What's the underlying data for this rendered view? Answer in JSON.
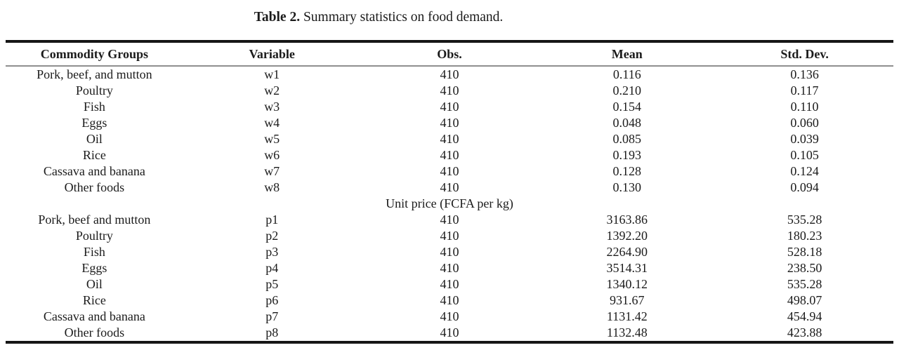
{
  "caption": {
    "label": "Table 2.",
    "text": "Summary statistics on food demand."
  },
  "table": {
    "headers": [
      "Commodity Groups",
      "Variable",
      "Obs.",
      "Mean",
      "Std. Dev."
    ],
    "budget_share_rows": [
      {
        "commodity": "Pork, beef, and mutton",
        "variable": "w1",
        "obs": "410",
        "mean": "0.116",
        "std_dev": "0.136"
      },
      {
        "commodity": "Poultry",
        "variable": "w2",
        "obs": "410",
        "mean": "0.210",
        "std_dev": "0.117"
      },
      {
        "commodity": "Fish",
        "variable": "w3",
        "obs": "410",
        "mean": "0.154",
        "std_dev": "0.110"
      },
      {
        "commodity": "Eggs",
        "variable": "w4",
        "obs": "410",
        "mean": "0.048",
        "std_dev": "0.060"
      },
      {
        "commodity": "Oil",
        "variable": "w5",
        "obs": "410",
        "mean": "0.085",
        "std_dev": "0.039"
      },
      {
        "commodity": "Rice",
        "variable": "w6",
        "obs": "410",
        "mean": "0.193",
        "std_dev": "0.105"
      },
      {
        "commodity": "Cassava and banana",
        "variable": "w7",
        "obs": "410",
        "mean": "0.128",
        "std_dev": "0.124"
      },
      {
        "commodity": "Other foods",
        "variable": "w8",
        "obs": "410",
        "mean": "0.130",
        "std_dev": "0.094"
      }
    ],
    "section_header": "Unit price (FCFA per kg)",
    "unit_price_rows": [
      {
        "commodity": "Pork, beef and mutton",
        "variable": "p1",
        "obs": "410",
        "mean": "3163.86",
        "std_dev": "535.28"
      },
      {
        "commodity": "Poultry",
        "variable": "p2",
        "obs": "410",
        "mean": "1392.20",
        "std_dev": "180.23"
      },
      {
        "commodity": "Fish",
        "variable": "p3",
        "obs": "410",
        "mean": "2264.90",
        "std_dev": "528.18"
      },
      {
        "commodity": "Eggs",
        "variable": "p4",
        "obs": "410",
        "mean": "3514.31",
        "std_dev": "238.50"
      },
      {
        "commodity": "Oil",
        "variable": "p5",
        "obs": "410",
        "mean": "1340.12",
        "std_dev": "535.28"
      },
      {
        "commodity": "Rice",
        "variable": "p6",
        "obs": "410",
        "mean": "931.67",
        "std_dev": "498.07"
      },
      {
        "commodity": "Cassava and banana",
        "variable": "p7",
        "obs": "410",
        "mean": "1131.42",
        "std_dev": "454.94"
      },
      {
        "commodity": "Other foods",
        "variable": "p8",
        "obs": "410",
        "mean": "1132.48",
        "std_dev": "423.88"
      }
    ]
  },
  "colors": {
    "text": "#1b1b1b",
    "thick_rule": "#161616",
    "header_rule": "#8f8f8f",
    "background": "#ffffff"
  }
}
